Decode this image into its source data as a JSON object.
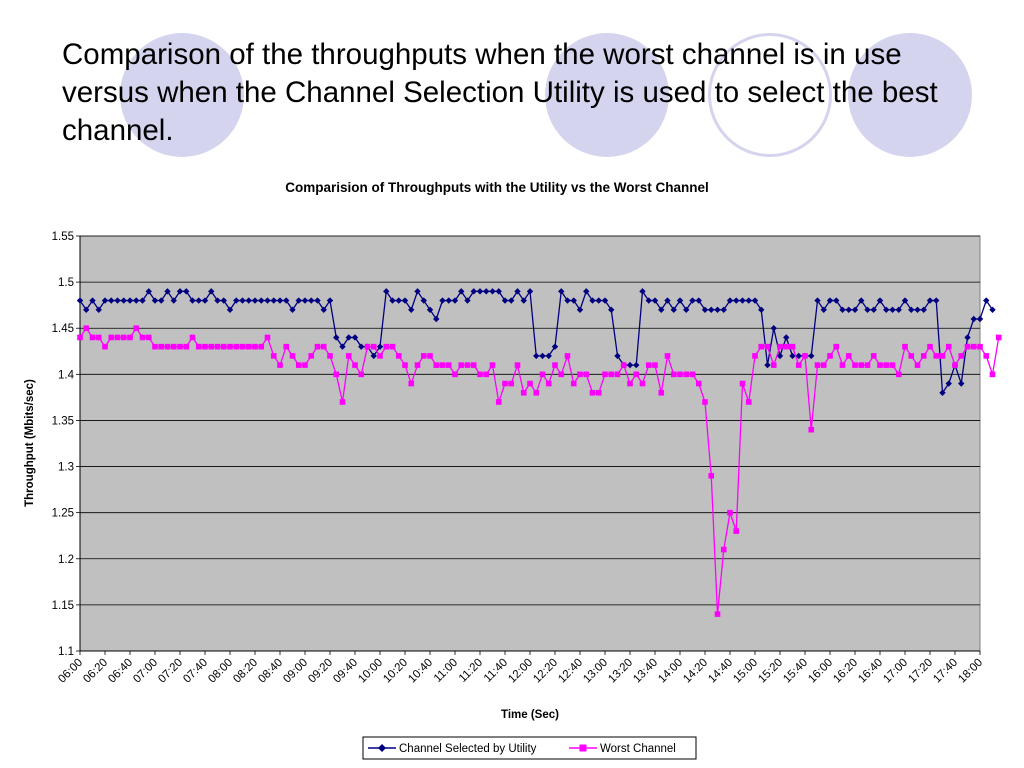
{
  "slide": {
    "title": "Comparison of the throughputs when the worst channel is in use versus when the Channel Selection Utility is used to select the best channel."
  },
  "colors": {
    "decoration": "#d4d4ef",
    "plot_area": "#c0c0c0",
    "utility_series": "#000080",
    "worst_series": "#ff00ff"
  },
  "chart_data": {
    "type": "line",
    "title": "Comparision of Throughputs with the Utility vs the Worst Channel",
    "xlabel": "Time (Sec)",
    "ylabel": "Throughput (Mbits/sec)",
    "ylim": [
      1.1,
      1.55
    ],
    "yticks": [
      "1.1",
      "1.15",
      "1.2",
      "1.25",
      "1.3",
      "1.35",
      "1.4",
      "1.45",
      "1.5",
      "1.55"
    ],
    "xticks": [
      "06:00",
      "06:20",
      "06:40",
      "07:00",
      "07:20",
      "07:40",
      "08:00",
      "08:20",
      "08:40",
      "09:00",
      "09:20",
      "09:40",
      "10:00",
      "10:20",
      "10:40",
      "11:00",
      "11:20",
      "11:40",
      "12:00",
      "12:20",
      "12:40",
      "13:00",
      "13:20",
      "13:40",
      "14:00",
      "14:20",
      "14:40",
      "15:00",
      "15:20",
      "15:40",
      "16:00",
      "16:20",
      "16:40",
      "17:00",
      "17:20",
      "17:40",
      "18:00"
    ],
    "x_interval_minutes": 5,
    "grid": "horizontal",
    "legend_position": "bottom",
    "series": [
      {
        "name": "Channel Selected by Utility",
        "color": "#000080",
        "marker": "diamond",
        "values": [
          1.48,
          1.47,
          1.48,
          1.47,
          1.48,
          1.48,
          1.48,
          1.48,
          1.48,
          1.48,
          1.48,
          1.49,
          1.48,
          1.48,
          1.49,
          1.48,
          1.49,
          1.49,
          1.48,
          1.48,
          1.48,
          1.49,
          1.48,
          1.48,
          1.47,
          1.48,
          1.48,
          1.48,
          1.48,
          1.48,
          1.48,
          1.48,
          1.48,
          1.48,
          1.47,
          1.48,
          1.48,
          1.48,
          1.48,
          1.47,
          1.48,
          1.44,
          1.43,
          1.44,
          1.44,
          1.43,
          1.43,
          1.42,
          1.43,
          1.49,
          1.48,
          1.48,
          1.48,
          1.47,
          1.49,
          1.48,
          1.47,
          1.46,
          1.48,
          1.48,
          1.48,
          1.49,
          1.48,
          1.49,
          1.49,
          1.49,
          1.49,
          1.49,
          1.48,
          1.48,
          1.49,
          1.48,
          1.49,
          1.42,
          1.42,
          1.42,
          1.43,
          1.49,
          1.48,
          1.48,
          1.47,
          1.49,
          1.48,
          1.48,
          1.48,
          1.47,
          1.42,
          1.41,
          1.41,
          1.41,
          1.49,
          1.48,
          1.48,
          1.47,
          1.48,
          1.47,
          1.48,
          1.47,
          1.48,
          1.48,
          1.47,
          1.47,
          1.47,
          1.47,
          1.48,
          1.48,
          1.48,
          1.48,
          1.48,
          1.47,
          1.41,
          1.45,
          1.42,
          1.44,
          1.42,
          1.42,
          1.42,
          1.42,
          1.48,
          1.47,
          1.48,
          1.48,
          1.47,
          1.47,
          1.47,
          1.48,
          1.47,
          1.47,
          1.48,
          1.47,
          1.47,
          1.47,
          1.48,
          1.47,
          1.47,
          1.47,
          1.48,
          1.48,
          1.38,
          1.39,
          1.41,
          1.39,
          1.44,
          1.46,
          1.46,
          1.48,
          1.47
        ]
      },
      {
        "name": "Worst Channel",
        "color": "#ff00ff",
        "marker": "square",
        "values": [
          1.44,
          1.45,
          1.44,
          1.44,
          1.43,
          1.44,
          1.44,
          1.44,
          1.44,
          1.45,
          1.44,
          1.44,
          1.43,
          1.43,
          1.43,
          1.43,
          1.43,
          1.43,
          1.44,
          1.43,
          1.43,
          1.43,
          1.43,
          1.43,
          1.43,
          1.43,
          1.43,
          1.43,
          1.43,
          1.43,
          1.44,
          1.42,
          1.41,
          1.43,
          1.42,
          1.41,
          1.41,
          1.42,
          1.43,
          1.43,
          1.42,
          1.4,
          1.37,
          1.42,
          1.41,
          1.4,
          1.43,
          1.43,
          1.42,
          1.43,
          1.43,
          1.42,
          1.41,
          1.39,
          1.41,
          1.42,
          1.42,
          1.41,
          1.41,
          1.41,
          1.4,
          1.41,
          1.41,
          1.41,
          1.4,
          1.4,
          1.41,
          1.37,
          1.39,
          1.39,
          1.41,
          1.38,
          1.39,
          1.38,
          1.4,
          1.39,
          1.41,
          1.4,
          1.42,
          1.39,
          1.4,
          1.4,
          1.38,
          1.38,
          1.4,
          1.4,
          1.4,
          1.41,
          1.39,
          1.4,
          1.39,
          1.41,
          1.41,
          1.38,
          1.42,
          1.4,
          1.4,
          1.4,
          1.4,
          1.39,
          1.37,
          1.29,
          1.14,
          1.21,
          1.25,
          1.23,
          1.39,
          1.37,
          1.42,
          1.43,
          1.43,
          1.41,
          1.43,
          1.43,
          1.43,
          1.41,
          1.42,
          1.34,
          1.41,
          1.41,
          1.42,
          1.43,
          1.41,
          1.42,
          1.41,
          1.41,
          1.41,
          1.42,
          1.41,
          1.41,
          1.41,
          1.4,
          1.43,
          1.42,
          1.41,
          1.42,
          1.43,
          1.42,
          1.42,
          1.43,
          1.41,
          1.42,
          1.43,
          1.43,
          1.43,
          1.42,
          1.4,
          1.44
        ]
      }
    ]
  }
}
